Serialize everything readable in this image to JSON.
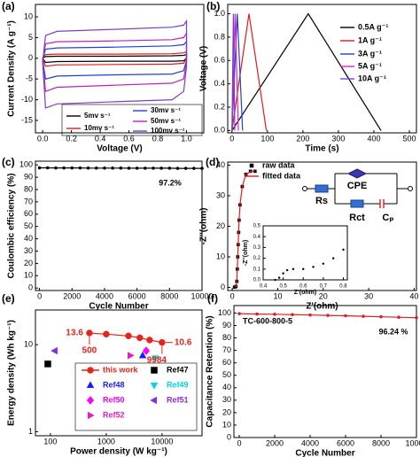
{
  "chart_data": [
    {
      "type": "line",
      "label": "(a)",
      "xlabel": "Voltage (V)",
      "ylabel": "Current Density (A g⁻¹)",
      "xlim": [
        -0.05,
        1.12
      ],
      "ylim": [
        -18,
        13
      ],
      "xticks": [
        {
          "value": 0,
          "label": "0.0"
        },
        0.2,
        0.4,
        0.6,
        0.8,
        {
          "value": 1,
          "label": "1.0"
        }
      ],
      "yticks": [
        -15,
        -10,
        -5,
        0,
        5,
        10
      ],
      "closed": true,
      "x": [
        0,
        0.02,
        0.1,
        0.5,
        0.9,
        0.98,
        1,
        1,
        0.98,
        0.9,
        0.5,
        0.1,
        0.02,
        0
      ],
      "series": [
        {
          "name": "5mv s⁻¹",
          "color": "#000000",
          "line": true,
          "values": [
            0,
            0.4,
            0.5,
            0.5,
            0.6,
            0.7,
            0.9,
            0,
            -0.6,
            -0.7,
            -0.7,
            -0.8,
            -1,
            0
          ]
        },
        {
          "name": "10mv s⁻¹",
          "color": "#e41a1c",
          "line": true,
          "values": [
            0,
            0.9,
            1,
            1,
            1.1,
            1.3,
            1.6,
            0,
            -1.2,
            -1.4,
            -1.5,
            -1.6,
            -1.9,
            0
          ]
        },
        {
          "name": "30mv s⁻¹",
          "color": "#1f3fd6",
          "line": true,
          "values": [
            -0.3,
            2.2,
            2.5,
            2.7,
            3,
            3.3,
            4,
            -0.5,
            -3,
            -3.8,
            -4,
            -4.3,
            -5,
            -0.3
          ]
        },
        {
          "name": "50mv s⁻¹",
          "color": "#c21fb8",
          "line": true,
          "values": [
            -0.5,
            3.5,
            4,
            4.2,
            4.5,
            5,
            6,
            -1,
            -5,
            -6,
            -6.5,
            -7,
            -8,
            -0.5
          ]
        },
        {
          "name": "100mv s⁻¹",
          "color": "#7a3fc7",
          "line": true,
          "values": [
            -1,
            5.5,
            6.5,
            7,
            7.5,
            8,
            9,
            -2,
            -8,
            -10,
            -10.5,
            -11,
            -12,
            -1
          ]
        }
      ]
    },
    {
      "type": "line",
      "label": "(b)",
      "xlabel": "Time (s)",
      "ylabel": "Voltage (V)",
      "xlim": [
        -12,
        520
      ],
      "ylim": [
        -0.02,
        1.08
      ],
      "xticks": [
        0,
        100,
        200,
        300,
        400,
        500
      ],
      "yticks": [
        {
          "value": 0,
          "label": "0.0"
        },
        0.2,
        0.4,
        0.6,
        0.8,
        {
          "value": 1,
          "label": "1.0"
        }
      ],
      "series": [
        {
          "name": "0.5A g⁻¹",
          "color": "#000000",
          "line": true,
          "x": [
            0,
            215,
            420
          ],
          "values": [
            0,
            1,
            0
          ]
        },
        {
          "name": "1A g⁻¹",
          "color": "#e41a1c",
          "line": true,
          "x": [
            0,
            48,
            97
          ],
          "values": [
            0,
            1,
            0
          ]
        },
        {
          "name": "3A g⁻¹",
          "color": "#1f3fd6",
          "line": true,
          "x": [
            0,
            15,
            30
          ],
          "values": [
            0,
            1,
            0
          ]
        },
        {
          "name": "5A g⁻¹",
          "color": "#e020c0",
          "line": true,
          "x": [
            0,
            9,
            18
          ],
          "values": [
            0,
            1,
            0
          ]
        },
        {
          "name": "10A g⁻¹",
          "color": "#7a3fc7",
          "line": true,
          "x": [
            0,
            4,
            8
          ],
          "values": [
            0,
            1,
            0
          ]
        }
      ]
    },
    {
      "type": "scatter",
      "label": "(c)",
      "xlabel": "Cycle Number",
      "ylabel": "Coulombic efficiency (%)",
      "xlim": [
        -250,
        10000
      ],
      "ylim": [
        -2,
        103
      ],
      "xticks": [
        0,
        2000,
        4000,
        6000,
        8000,
        10000
      ],
      "yticks": [
        0,
        10,
        20,
        30,
        40,
        50,
        60,
        70,
        80,
        90,
        100
      ],
      "annotations": [
        "97.2%"
      ],
      "color": "#000000",
      "marker": "circle",
      "line": true,
      "x": [
        0,
        500,
        1000,
        1500,
        2000,
        2500,
        3000,
        3500,
        4000,
        4500,
        5000,
        5500,
        6000,
        6500,
        7000,
        7500,
        8000,
        8500,
        9000,
        9500,
        10000
      ],
      "values": [
        97.6,
        97.6,
        97.5,
        97.5,
        97.5,
        97.5,
        97.4,
        97.4,
        97.4,
        97.4,
        97.4,
        97.3,
        97.3,
        97.3,
        97.3,
        97.3,
        97.3,
        97.2,
        97.2,
        97.2,
        97.2
      ]
    },
    {
      "type": "scatter",
      "label": "(d)",
      "xlabel": "Z'(ohm)",
      "ylabel": "-Z''(ohm)",
      "xlim": [
        -1,
        40.5
      ],
      "ylim": [
        -1,
        41
      ],
      "xticks": [
        0,
        10,
        20,
        30,
        40
      ],
      "yticks": [
        0,
        10,
        20,
        30,
        40
      ],
      "series": [
        {
          "name": "raw data",
          "color": "#000000",
          "marker": "square",
          "x": [
            0.5,
            0.8,
            1.0,
            1.1,
            1.2,
            1.3,
            1.4,
            1.5,
            1.7,
            2.2,
            3.0,
            4.0,
            5.0
          ],
          "values": [
            0.1,
            0.3,
            2,
            6,
            10,
            14,
            18,
            22,
            27,
            33,
            37,
            38,
            38
          ]
        },
        {
          "name": "fitted data",
          "color": "#e41a1c",
          "line": true,
          "x": [
            0.5,
            0.8,
            1.0,
            1.1,
            1.2,
            1.3,
            1.4,
            1.5,
            1.7,
            2.2,
            3.0,
            4.0,
            5.0
          ],
          "values": [
            0.1,
            0.3,
            2,
            6,
            10,
            14,
            18,
            22,
            27,
            33,
            37,
            37.8,
            38.2
          ]
        }
      ],
      "circuit": [
        "Rs",
        "CPE",
        "Rct",
        "Cₚ"
      ],
      "inset": {
        "xlabel": "Z'(ohm)",
        "ylabel": "-Z''(ohm)",
        "xlim": [
          0.4,
          0.82
        ],
        "ylim": [
          0,
          0.5
        ],
        "xticks": [
          0.4,
          0.5,
          0.6,
          0.7,
          0.8
        ],
        "yticks": [
          {
            "value": 0,
            "label": "0.0"
          },
          0.1,
          0.2,
          0.3,
          0.4,
          0.5
        ],
        "color": "#000000",
        "marker": "circle",
        "x": [
          0.46,
          0.48,
          0.5,
          0.52,
          0.55,
          0.6,
          0.65,
          0.7,
          0.75,
          0.8
        ],
        "values": [
          0,
          0.02,
          0.06,
          0.09,
          0.1,
          0.1,
          0.12,
          0.15,
          0.2,
          0.28
        ]
      }
    },
    {
      "type": "scatter",
      "label": "(e)",
      "xlabel": "Power density (W kg⁻¹)",
      "ylabel": "Energy density (Wh kg⁻¹)",
      "xlog": true,
      "ylog": true,
      "xlim": [
        54,
        52000
      ],
      "ylim": [
        0.9,
        25
      ],
      "xticks": [
        100,
        1000,
        10000
      ],
      "yticks": [
        1,
        10
      ],
      "series": [
        {
          "name": "this work",
          "color": "#e8231a",
          "marker": "circle",
          "line": true,
          "x": [
            500,
            1000,
            2500,
            4000,
            6000,
            9984
          ],
          "values": [
            13.6,
            13.2,
            12.6,
            12,
            11.3,
            10.6
          ]
        },
        {
          "name": "Ref47",
          "color": "#000000",
          "marker": "square",
          "x": [
            90
          ],
          "values": [
            6
          ]
        },
        {
          "name": "Ref48",
          "color": "#1a1aff",
          "marker": "triangle-up",
          "x": [
            4500
          ],
          "values": [
            7.5
          ]
        },
        {
          "name": "Ref49",
          "color": "#00d5e5",
          "marker": "triangle-down",
          "x": [
            7500
          ],
          "values": [
            7
          ]
        },
        {
          "name": "Ref50",
          "color": "#ff00ff",
          "marker": "diamond",
          "x": [
            5200
          ],
          "values": [
            8.5
          ]
        },
        {
          "name": "Ref51",
          "color": "#8a2be2",
          "marker": "triangle-left",
          "x": [
            120
          ],
          "values": [
            8.5
          ]
        },
        {
          "name": "Ref52",
          "color": "#e020c0",
          "marker": "triangle-right",
          "x": [
            2700
          ],
          "values": [
            7.5
          ]
        }
      ]
    },
    {
      "type": "line",
      "label": "(f)",
      "xlabel": "Cycle Number",
      "ylabel": "Capacitance Retention (%)",
      "xlim": [
        -300,
        10000
      ],
      "ylim": [
        0,
        106
      ],
      "xticks": [
        0,
        2000,
        4000,
        6000,
        8000,
        10000
      ],
      "yticks": [
        0,
        10,
        20,
        30,
        40,
        50,
        60,
        70,
        80,
        90,
        100
      ],
      "annotations": [
        "TC-600-800-5",
        "96.24 %"
      ],
      "color": "#e41a1c",
      "marker": "circle",
      "line": true,
      "x": [
        0,
        1000,
        2000,
        3000,
        4000,
        5000,
        6000,
        7000,
        8000,
        9000,
        10000
      ],
      "values": [
        99.5,
        99.2,
        99,
        98.7,
        98.4,
        98.1,
        97.8,
        97.4,
        97,
        96.6,
        96.24
      ]
    }
  ]
}
